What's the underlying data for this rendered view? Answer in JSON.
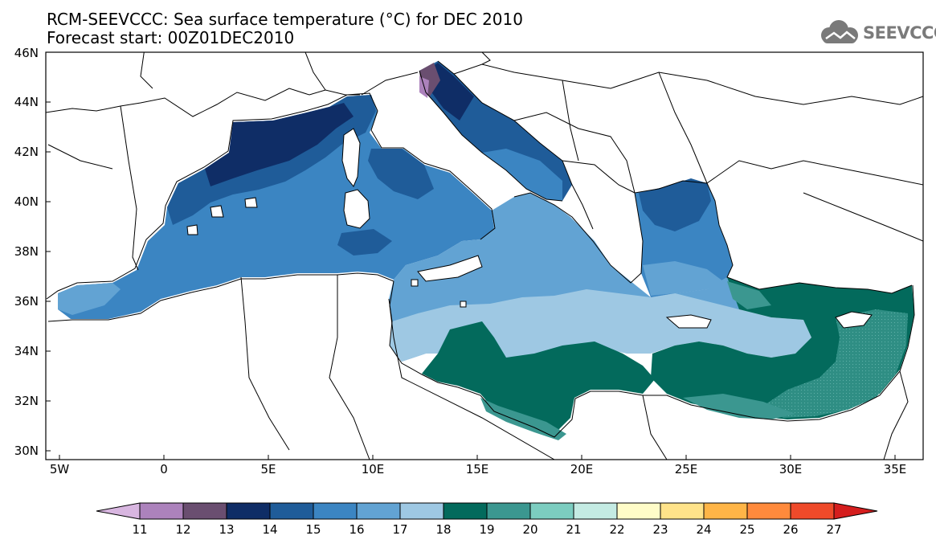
{
  "header": {
    "title": "RCM-SEEVCCC: Sea surface temperature (°C) for DEC 2010",
    "subtitle": "Forecast start: 00Z01DEC2010",
    "logo_text": "SEEVCCC"
  },
  "axes": {
    "lat_labels": [
      "46N",
      "44N",
      "42N",
      "40N",
      "38N",
      "36N",
      "34N",
      "32N",
      "30N"
    ],
    "lon_labels": [
      "5W",
      "0",
      "5E",
      "10E",
      "15E",
      "20E",
      "25E",
      "30E",
      "35E"
    ],
    "lon_range": [
      -5.5,
      36.5
    ],
    "lat_range": [
      29.8,
      46
    ]
  },
  "colorbar": {
    "labels": [
      "11",
      "12",
      "13",
      "14",
      "15",
      "16",
      "17",
      "18",
      "19",
      "20",
      "21",
      "22",
      "23",
      "24",
      "25",
      "26",
      "27"
    ],
    "colors": [
      "#d8b6e0",
      "#ac82bc",
      "#6a4e70",
      "#0f2d66",
      "#1f5c99",
      "#3b85c2",
      "#62a3d3",
      "#9ec8e3",
      "#036a5c",
      "#3b9790",
      "#7ccdc0",
      "#c4ebe3",
      "#fffcc8",
      "#ffe38a",
      "#ffb547",
      "#ff8a3c",
      "#ef4a2a",
      "#d51e1e"
    ]
  },
  "map_regions": {
    "western_med": "15-16",
    "gulf_of_lion": "14-15",
    "north_adriatic": "12-14",
    "ionian_central": "17-18",
    "libyan_coast": "19",
    "levantine": "19-20",
    "aegean_north": "14-15"
  }
}
